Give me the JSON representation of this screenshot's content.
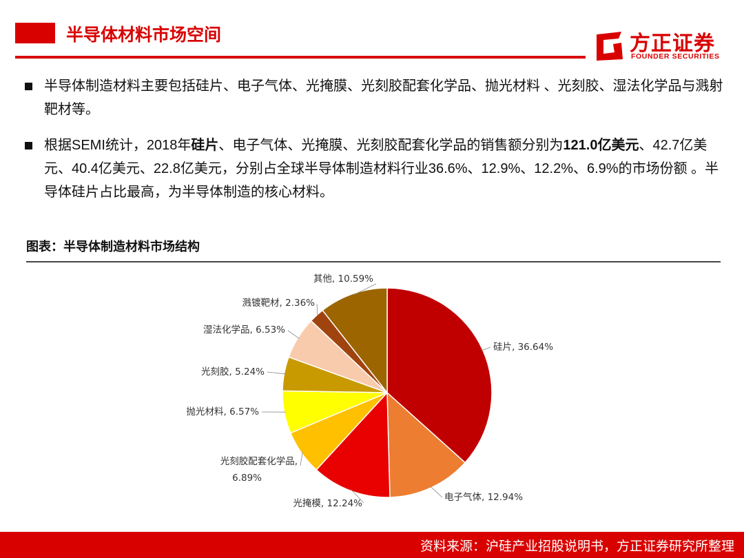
{
  "header": {
    "title": "半导体材料市场空间"
  },
  "logo": {
    "name_cn": "方正证券",
    "name_en": "FOUNDER SECURITIES"
  },
  "bullets": [
    {
      "text": "半导体制造材料主要包括硅片、电子气体、光掩膜、光刻胶配套化学品、抛光材料 、光刻胶、湿法化学品与溅射靶材等。"
    },
    {
      "prefix": "根据SEMI统计，2018年",
      "bold_1": "硅片",
      "middle": "、电子气体、光掩膜、光刻胶配套化学品的销售额分别为",
      "bold_2": "121.0亿美元",
      "suffix": "、42.7亿美元、40.4亿美元、22.8亿美元，分别占全球半导体制造材料行业36.6%、12.9%、12.2%、6.9%的市场份额 。半导体硅片占比最高，为半导体制造的核心材料。"
    }
  ],
  "figure": {
    "caption": "图表：半导体制造材料市场结构"
  },
  "chart_data": {
    "type": "pie",
    "start_angle_deg": 0,
    "direction": "clockwise",
    "slices": [
      {
        "label": "硅片, 36.64%",
        "name": "硅片",
        "value": 36.64,
        "color": "#c00000"
      },
      {
        "label": "电子气体, 12.94%",
        "name": "电子气体",
        "value": 12.94,
        "color": "#ed7d31"
      },
      {
        "label": "光掩模, 12.24%",
        "name": "光掩模",
        "value": 12.24,
        "color": "#e90000"
      },
      {
        "label": "光刻胶配套化学品,\n6.89%",
        "name": "光刻胶配套化学品",
        "value": 6.89,
        "color": "#ffc000"
      },
      {
        "label": "抛光材料, 6.57%",
        "name": "抛光材料",
        "value": 6.57,
        "color": "#ffff00"
      },
      {
        "label": "光刻胶, 5.24%",
        "name": "光刻胶",
        "value": 5.24,
        "color": "#c99a00"
      },
      {
        "label": "湿法化学品, 6.53%",
        "name": "湿法化学品",
        "value": 6.53,
        "color": "#f8cbad"
      },
      {
        "label": "溅镀靶材, 2.36%",
        "name": "溅镀靶材",
        "value": 2.36,
        "color": "#a0440f"
      },
      {
        "label": "其他, 10.59%",
        "name": "其他",
        "value": 10.59,
        "color": "#9c6500"
      }
    ]
  },
  "footer": {
    "source": "资料来源：沪硅产业招股说明书，方正证券研究所整理"
  }
}
